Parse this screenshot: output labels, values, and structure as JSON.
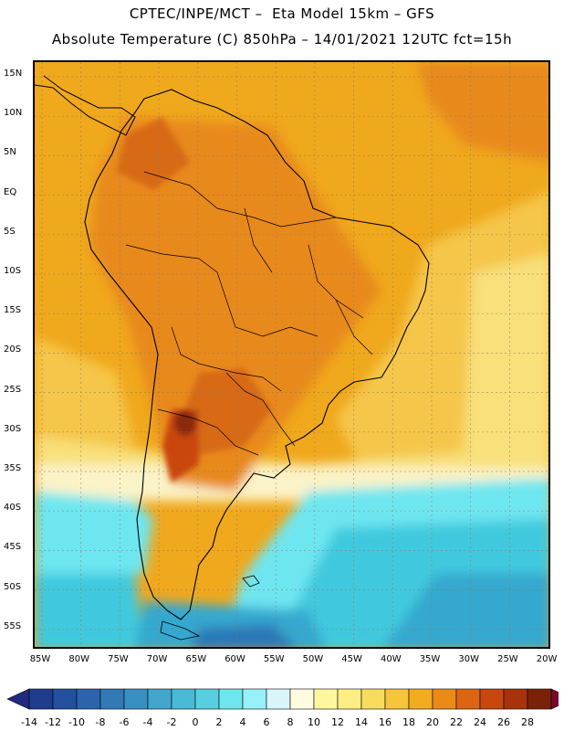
{
  "header": {
    "line1": "CPTEC/INPE/MCT –  Eta Model 15km – GFS",
    "line2": "Absolute Temperature (C) 850hPa – 14/01/2021 12UTC fct=15h"
  },
  "map": {
    "lat_labels": [
      "15N",
      "10N",
      "5N",
      "EQ",
      "5S",
      "10S",
      "15S",
      "20S",
      "25S",
      "30S",
      "35S",
      "40S",
      "45S",
      "50S",
      "55S"
    ],
    "lon_labels": [
      "85W",
      "80W",
      "75W",
      "70W",
      "65W",
      "60W",
      "55W",
      "50W",
      "45W",
      "40W",
      "35W",
      "30W",
      "25W",
      "20W"
    ],
    "colors": {
      "orange_hot": "#e8891a",
      "orange": "#f0a81c",
      "amber": "#f5c64a",
      "yellow": "#f8e07a",
      "pale": "#fbf3c8",
      "ice": "#d8f4fa",
      "cyan": "#6ee6f0",
      "aqua": "#3fc9de",
      "teal": "#36a8cf",
      "blue": "#2c78b8",
      "red": "#c9460f",
      "darkred": "#8a2a0a"
    }
  },
  "colorbar": {
    "labels": [
      "-14",
      "-12",
      "-10",
      "-8",
      "-6",
      "-4",
      "-2",
      "0",
      "2",
      "4",
      "6",
      "8",
      "10",
      "12",
      "14",
      "16",
      "18",
      "20",
      "22",
      "24",
      "26",
      "28"
    ],
    "colors": [
      "#1d3c8c",
      "#23509c",
      "#2c64ac",
      "#3279b6",
      "#3a8fc2",
      "#42a6cc",
      "#48bad6",
      "#56d0e0",
      "#6ee6ee",
      "#98f0f8",
      "#d8f6fa",
      "#fffbe0",
      "#fff7a0",
      "#fdef84",
      "#f8dc5c",
      "#f5c53a",
      "#f2ad1e",
      "#ea8c14",
      "#dd6410",
      "#c9460f",
      "#a8320c",
      "#7a2208"
    ],
    "left_end": "#1f2a80",
    "right_end": "#7a0a2a"
  }
}
